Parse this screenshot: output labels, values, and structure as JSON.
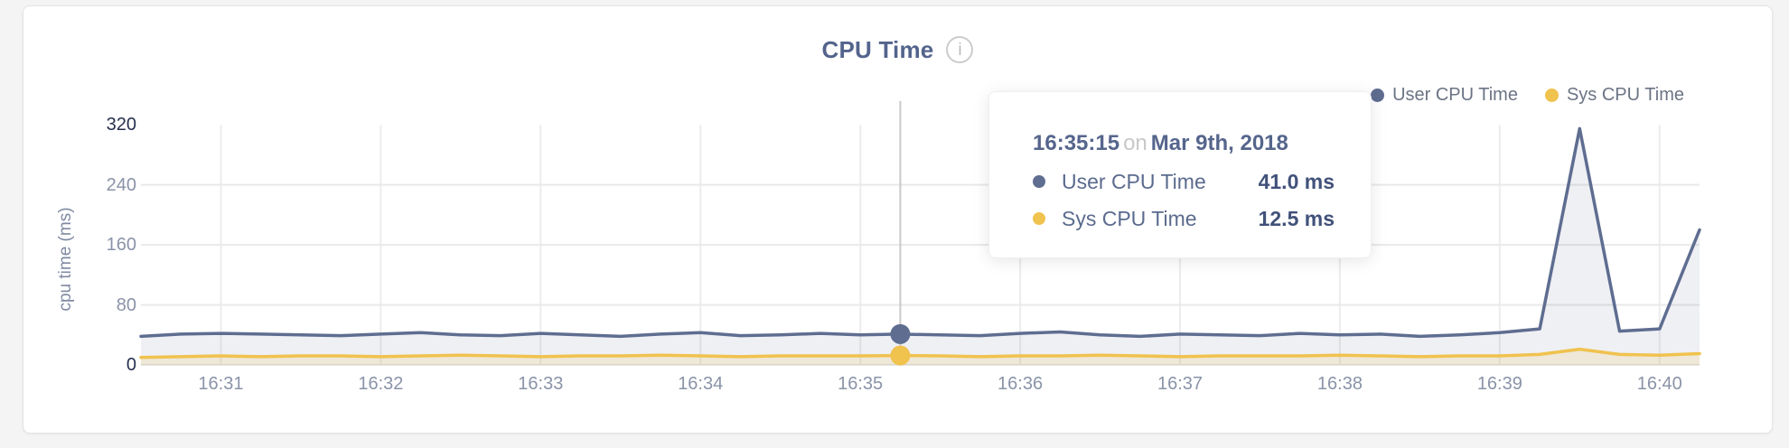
{
  "card": {
    "title": "CPU Time"
  },
  "legend": {
    "items": [
      {
        "label": "User CPU Time",
        "color": "#5e6d90"
      },
      {
        "label": "Sys CPU Time",
        "color": "#f0c24e"
      }
    ]
  },
  "tooltip": {
    "time": "16:35:15",
    "connector": "on",
    "date": "Mar 9th, 2018",
    "rows": [
      {
        "label": "User CPU Time",
        "value": "41.0 ms"
      },
      {
        "label": "Sys CPU Time",
        "value": "12.5 ms"
      }
    ]
  },
  "icons": {
    "info": "i"
  },
  "colors": {
    "user_line": "#5e6d90",
    "sys_line": "#f0c24e",
    "user_fill": "rgba(94,109,144,0.10)",
    "sys_fill": "rgba(238,200,90,0.18)",
    "grid_v": "#ececec",
    "grid_h": "#e9e9e9",
    "zero_line": "#e6e6e6",
    "crosshair": "#c9c9c9",
    "axis_label": "#8a93a8",
    "axis_label_strong": "#27304e"
  },
  "chart_data": {
    "type": "area",
    "title": "CPU Time",
    "xlabel": "",
    "ylabel": "cpu time (ms)",
    "ylim": [
      0,
      320
    ],
    "grid": true,
    "legend_position": "top-right",
    "y_ticks": [
      {
        "label": "320",
        "value": 320,
        "strong": true
      },
      {
        "label": "240",
        "value": 240,
        "strong": false
      },
      {
        "label": "160",
        "value": 160,
        "strong": false
      },
      {
        "label": "80",
        "value": 80,
        "strong": false
      },
      {
        "label": "0",
        "value": 0,
        "strong": true
      }
    ],
    "x_ticks": [
      "16:31",
      "16:32",
      "16:33",
      "16:34",
      "16:35",
      "16:36",
      "16:37",
      "16:38",
      "16:39",
      "16:40"
    ],
    "x": [
      "16:30:30",
      "16:30:45",
      "16:31:00",
      "16:31:15",
      "16:31:30",
      "16:31:45",
      "16:32:00",
      "16:32:15",
      "16:32:30",
      "16:32:45",
      "16:33:00",
      "16:33:15",
      "16:33:30",
      "16:33:45",
      "16:34:00",
      "16:34:15",
      "16:34:30",
      "16:34:45",
      "16:35:00",
      "16:35:15",
      "16:35:30",
      "16:35:45",
      "16:36:00",
      "16:36:15",
      "16:36:30",
      "16:36:45",
      "16:37:00",
      "16:37:15",
      "16:37:30",
      "16:37:45",
      "16:38:00",
      "16:38:15",
      "16:38:30",
      "16:38:45",
      "16:39:00",
      "16:39:15",
      "16:39:30",
      "16:39:45",
      "16:40:00",
      "16:40:15"
    ],
    "series": [
      {
        "name": "User CPU Time",
        "color": "#5e6d90",
        "unit": "ms",
        "values": [
          38,
          41,
          42,
          41,
          40,
          39,
          41,
          43,
          40,
          39,
          42,
          40,
          38,
          41,
          43,
          39,
          40,
          42,
          40,
          41,
          40,
          39,
          42,
          44,
          40,
          38,
          41,
          40,
          39,
          42,
          40,
          41,
          38,
          40,
          43,
          48,
          315,
          45,
          48,
          180
        ]
      },
      {
        "name": "Sys CPU Time",
        "color": "#f0c24e",
        "unit": "ms",
        "values": [
          10,
          11,
          12,
          11,
          12,
          12,
          11,
          12,
          13,
          12,
          11,
          12,
          12,
          13,
          12,
          11,
          12,
          12,
          12,
          12.5,
          12,
          11,
          12,
          12,
          13,
          12,
          11,
          12,
          12,
          12,
          13,
          12,
          11,
          12,
          12,
          14,
          21,
          14,
          13,
          15
        ]
      }
    ],
    "selected": {
      "index": 19,
      "time": "16:35:15",
      "date": "Mar 9th, 2018",
      "user_value_ms": 41.0,
      "sys_value_ms": 12.5
    }
  }
}
